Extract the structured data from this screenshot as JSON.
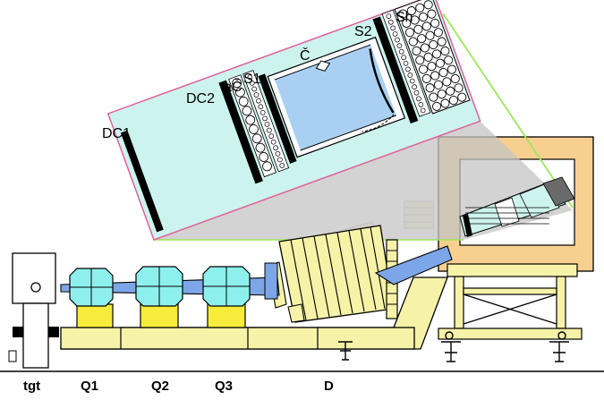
{
  "colors": {
    "detector_bg": "#cdf3ee",
    "magnet_yellow": "#f6f3a8",
    "quad_yellow": "#f7ec3c",
    "quad_cyan": "#8ef0ec",
    "beam_blue": "#7da6e8",
    "hut_orange": "#f7cf8f",
    "callout_gray": "#c4c4c4",
    "callout_edge": "#9ee65a",
    "frame_pink": "#e0609a"
  },
  "detector_labels": {
    "dc1": "DC1",
    "dc2": "DC2",
    "aerogel": "aČ",
    "s1": "S1",
    "cherenkov": "Č",
    "s2": "S2",
    "shower": "Sh"
  },
  "beamline_labels": {
    "target": "tgt",
    "q1": "Q1",
    "q2": "Q2",
    "q3": "Q3",
    "dipole": "D"
  }
}
